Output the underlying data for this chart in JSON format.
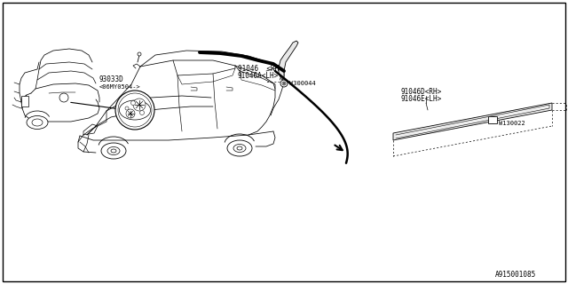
{
  "bg_color": "#ffffff",
  "diagram_id": "A915001085",
  "line_color": "#000000",
  "labels": {
    "part1_line1": "91046D<RH>",
    "part1_line2": "91046E<LH>",
    "part2_line1": "91046  <RH>",
    "part2_line2": "91046A<LH>",
    "part3_line1": "93033D",
    "part3_line2": "<06MY0504->",
    "bolt1": "W130022",
    "bolt2": "W300044"
  }
}
